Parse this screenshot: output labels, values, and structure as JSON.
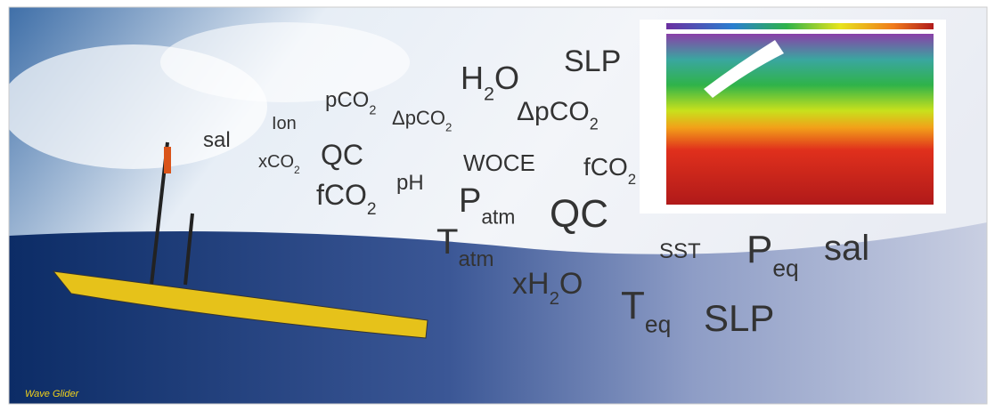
{
  "caption": "Wave Glider",
  "words": [
    {
      "parts": [
        "sal"
      ]
    },
    {
      "parts": [
        "Ion"
      ]
    },
    {
      "parts": [
        "pCO",
        "2"
      ]
    },
    {
      "parts": [
        "ΔpCO",
        "2"
      ]
    },
    {
      "parts": [
        "H",
        "2",
        "O"
      ]
    },
    {
      "parts": [
        "SLP"
      ]
    },
    {
      "parts": [
        "ΔpCO",
        "2"
      ]
    },
    {
      "parts": [
        "xCO",
        "2"
      ]
    },
    {
      "parts": [
        "QC"
      ]
    },
    {
      "parts": [
        "WOCE"
      ]
    },
    {
      "parts": [
        "fCO",
        "2"
      ]
    },
    {
      "parts": [
        "fCO",
        "2"
      ]
    },
    {
      "parts": [
        "pH"
      ]
    },
    {
      "parts": [
        "P",
        "atm"
      ]
    },
    {
      "parts": [
        "QC"
      ]
    },
    {
      "parts": [
        "T",
        "atm"
      ]
    },
    {
      "parts": [
        "SST"
      ]
    },
    {
      "parts": [
        "P",
        "eq"
      ]
    },
    {
      "parts": [
        "sal"
      ]
    },
    {
      "parts": [
        "xH",
        "2",
        "O"
      ]
    },
    {
      "parts": [
        "T",
        "eq"
      ]
    },
    {
      "parts": [
        "SLP"
      ]
    }
  ]
}
